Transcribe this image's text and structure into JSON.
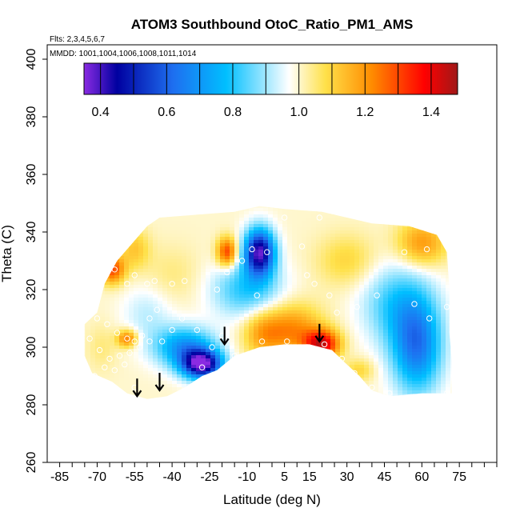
{
  "chart_data": {
    "type": "heatmap",
    "title": "ATOM3 Southbound OtoC_Ratio_PM1_AMS",
    "flights_note": "Flts: 2,3,4,5,6,7",
    "mmdd_note": "MMDD: 1001,1004,1006,1008,1011,1014",
    "xlabel": "Latitude (deg N)",
    "ylabel": "Theta (C)",
    "xlim": [
      -90,
      90
    ],
    "ylim": [
      260,
      405
    ],
    "x_ticks": [
      "-85",
      "-70",
      "-55",
      "-40",
      "-25",
      "-10",
      "5",
      "15",
      "30",
      "45",
      "60",
      "75"
    ],
    "x_tick_values": [
      -85,
      -70,
      -55,
      -40,
      -25,
      -10,
      5,
      15,
      30,
      45,
      60,
      75
    ],
    "y_ticks": [
      "260",
      "280",
      "300",
      "320",
      "340",
      "360",
      "380",
      "400"
    ],
    "y_tick_values": [
      260,
      280,
      300,
      320,
      340,
      360,
      380,
      400
    ],
    "colorbar": {
      "ticks": [
        "0.4",
        "0.6",
        "0.8",
        "1.0",
        "1.2",
        "1.4"
      ],
      "tick_values": [
        0.4,
        0.6,
        0.8,
        1.0,
        1.2,
        1.4
      ],
      "range": [
        0.35,
        1.48
      ],
      "colors": [
        "#8a2be2",
        "#0000a0",
        "#1e6ff0",
        "#00bfff",
        "#ffffff",
        "#ffe14a",
        "#ff8c00",
        "#ff0000",
        "#a01818"
      ]
    },
    "data_points": [
      [
        -63,
        327
      ],
      [
        -58,
        322
      ],
      [
        -55,
        325
      ],
      [
        -50,
        322
      ],
      [
        -47,
        323
      ],
      [
        -40,
        322
      ],
      [
        -35,
        323
      ],
      [
        -70,
        310
      ],
      [
        -66,
        308
      ],
      [
        -62,
        305
      ],
      [
        -58,
        303
      ],
      [
        -55,
        302
      ],
      [
        -52,
        304
      ],
      [
        -49,
        310
      ],
      [
        -46,
        313
      ],
      [
        -73,
        303
      ],
      [
        -69,
        299
      ],
      [
        -65,
        296
      ],
      [
        -61,
        297
      ],
      [
        -57,
        298
      ],
      [
        -53,
        300
      ],
      [
        -49,
        302
      ],
      [
        -71,
        290
      ],
      [
        -67,
        293
      ],
      [
        -63,
        292
      ],
      [
        -59,
        294
      ],
      [
        -55,
        286
      ],
      [
        -45,
        286
      ],
      [
        -28,
        293
      ],
      [
        -15,
        297
      ],
      [
        -4,
        302
      ],
      [
        6,
        302
      ],
      [
        14,
        300
      ],
      [
        21,
        301
      ],
      [
        28,
        296
      ],
      [
        33,
        291
      ],
      [
        40,
        286
      ],
      [
        -8,
        334
      ],
      [
        -2,
        333
      ],
      [
        12,
        335
      ],
      [
        14,
        325
      ],
      [
        17,
        322
      ],
      [
        23,
        318
      ],
      [
        26,
        312
      ],
      [
        34,
        314
      ],
      [
        42,
        318
      ],
      [
        57,
        315
      ],
      [
        63,
        310
      ],
      [
        70,
        314
      ],
      [
        -18,
        326
      ],
      [
        -12,
        330
      ],
      [
        -6,
        318
      ],
      [
        -22,
        320
      ],
      [
        5,
        345
      ],
      [
        19,
        345
      ],
      [
        53,
        333
      ],
      [
        62,
        334
      ],
      [
        -44,
        302
      ],
      [
        -40,
        306
      ],
      [
        -36,
        310
      ],
      [
        -30,
        306
      ],
      [
        -24,
        300
      ],
      [
        -20,
        304
      ],
      [
        47,
        284
      ],
      [
        70,
        284
      ]
    ],
    "annotations": [
      {
        "symbol": "arrow-down",
        "x": -54,
        "y": 283
      },
      {
        "symbol": "arrow-down",
        "x": -45,
        "y": 285
      },
      {
        "symbol": "arrow-down",
        "x": -19,
        "y": 301
      },
      {
        "symbol": "arrow-down",
        "x": 19,
        "y": 302
      }
    ]
  }
}
